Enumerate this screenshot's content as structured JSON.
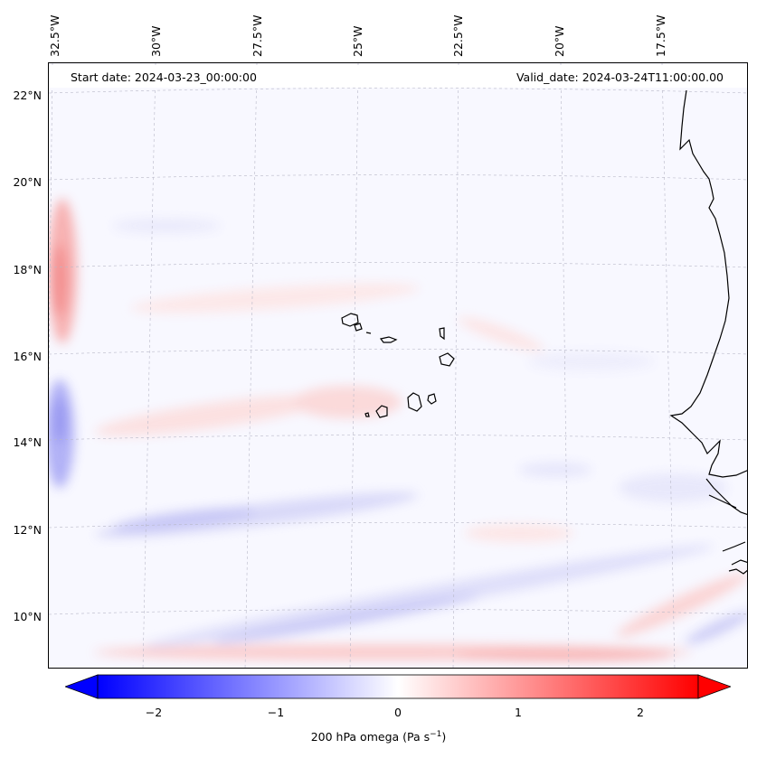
{
  "map": {
    "start_label": "Start date: 2024-03-23_00:00:00",
    "valid_label": "Valid_date: 2024-03-24T11:00:00.00",
    "lon_labels": [
      "32.5°W",
      "30°W",
      "27.5°W",
      "25°W",
      "22.5°W",
      "20°W",
      "17.5°W"
    ],
    "lat_labels": [
      "22°N",
      "20°N",
      "18°N",
      "16°N",
      "14°N",
      "12°N",
      "10°N"
    ]
  },
  "colorbar": {
    "ticks": [
      "−2",
      "−1",
      "0",
      "1",
      "2"
    ],
    "label_main": "200 hPa omega (Pa s",
    "label_exp": "−1",
    "label_close": ")",
    "vmin": -2.6,
    "vmax": 2.6,
    "low_color": "#0000ff",
    "mid_color": "#ffffff",
    "high_color": "#ff0000"
  }
}
